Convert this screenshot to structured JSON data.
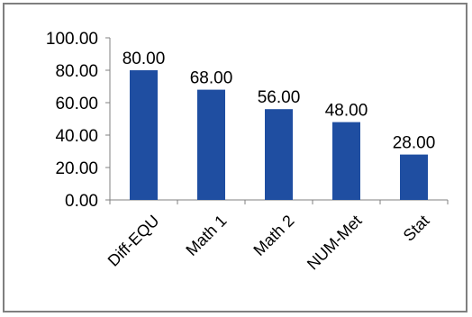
{
  "chart_data": {
    "type": "bar",
    "categories": [
      "Diff-EQU",
      "Math 1",
      "Math 2",
      "NUM-Met",
      "Stat"
    ],
    "values": [
      80,
      68,
      56,
      48,
      28
    ],
    "data_labels": [
      "80.00",
      "68.00",
      "56.00",
      "48.00",
      "28.00"
    ],
    "ylim": [
      0,
      100
    ],
    "yticks": [
      0,
      20,
      40,
      60,
      80,
      100
    ],
    "ytick_labels": [
      "0.00",
      "20.00",
      "40.00",
      "60.00",
      "80.00",
      "100.00"
    ],
    "grid": false,
    "legend": "none",
    "bar_color": "#1f4ea1",
    "title": "",
    "xlabel": "",
    "ylabel": ""
  }
}
